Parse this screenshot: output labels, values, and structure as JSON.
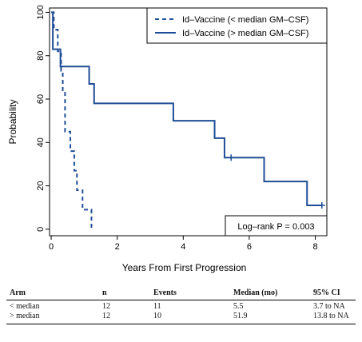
{
  "chart_data": {
    "type": "line",
    "title": "",
    "xlabel": "Years From First Progression",
    "ylabel": "Probability",
    "xlim": [
      -0.05,
      8.35
    ],
    "ylim": [
      -3,
      102
    ],
    "xticks": [
      0,
      2,
      4,
      6,
      8
    ],
    "yticks": [
      0,
      20,
      40,
      60,
      80,
      100
    ],
    "grid": false,
    "legend_position": "top-right",
    "series": [
      {
        "name": "Id–Vaccine (< median GM–CSF)",
        "style": "dashed",
        "color": "#1f4e96",
        "x": [
          0,
          0.08,
          0.2,
          0.3,
          0.35,
          0.42,
          0.58,
          0.7,
          0.78,
          0.95,
          1.22
        ],
        "y": [
          100,
          92,
          82,
          73,
          64,
          45,
          36,
          27,
          18,
          9,
          0
        ],
        "censored": []
      },
      {
        "name": "Id–Vaccine (> median GM–CSF)",
        "style": "solid",
        "color": "#1f4e96",
        "x": [
          0,
          0.05,
          0.28,
          1.15,
          1.3,
          3.7,
          4.95,
          5.25,
          6.45,
          7.75,
          8.2
        ],
        "y": [
          100,
          83,
          75,
          67,
          58,
          50,
          42,
          33,
          22,
          11,
          11
        ],
        "censored": [
          [
            5.45,
            33
          ],
          [
            8.2,
            11
          ]
        ]
      }
    ],
    "annotation": "Log–rank P = 0.003"
  },
  "table": {
    "headers": [
      "Arm",
      "n",
      "Events",
      "Median (mo)",
      "95% CI"
    ],
    "rows": [
      [
        "< median",
        "12",
        "11",
        "5.5",
        "3.7 to NA"
      ],
      [
        "> median",
        "12",
        "10",
        "51.9",
        "13.8 to NA"
      ]
    ]
  }
}
